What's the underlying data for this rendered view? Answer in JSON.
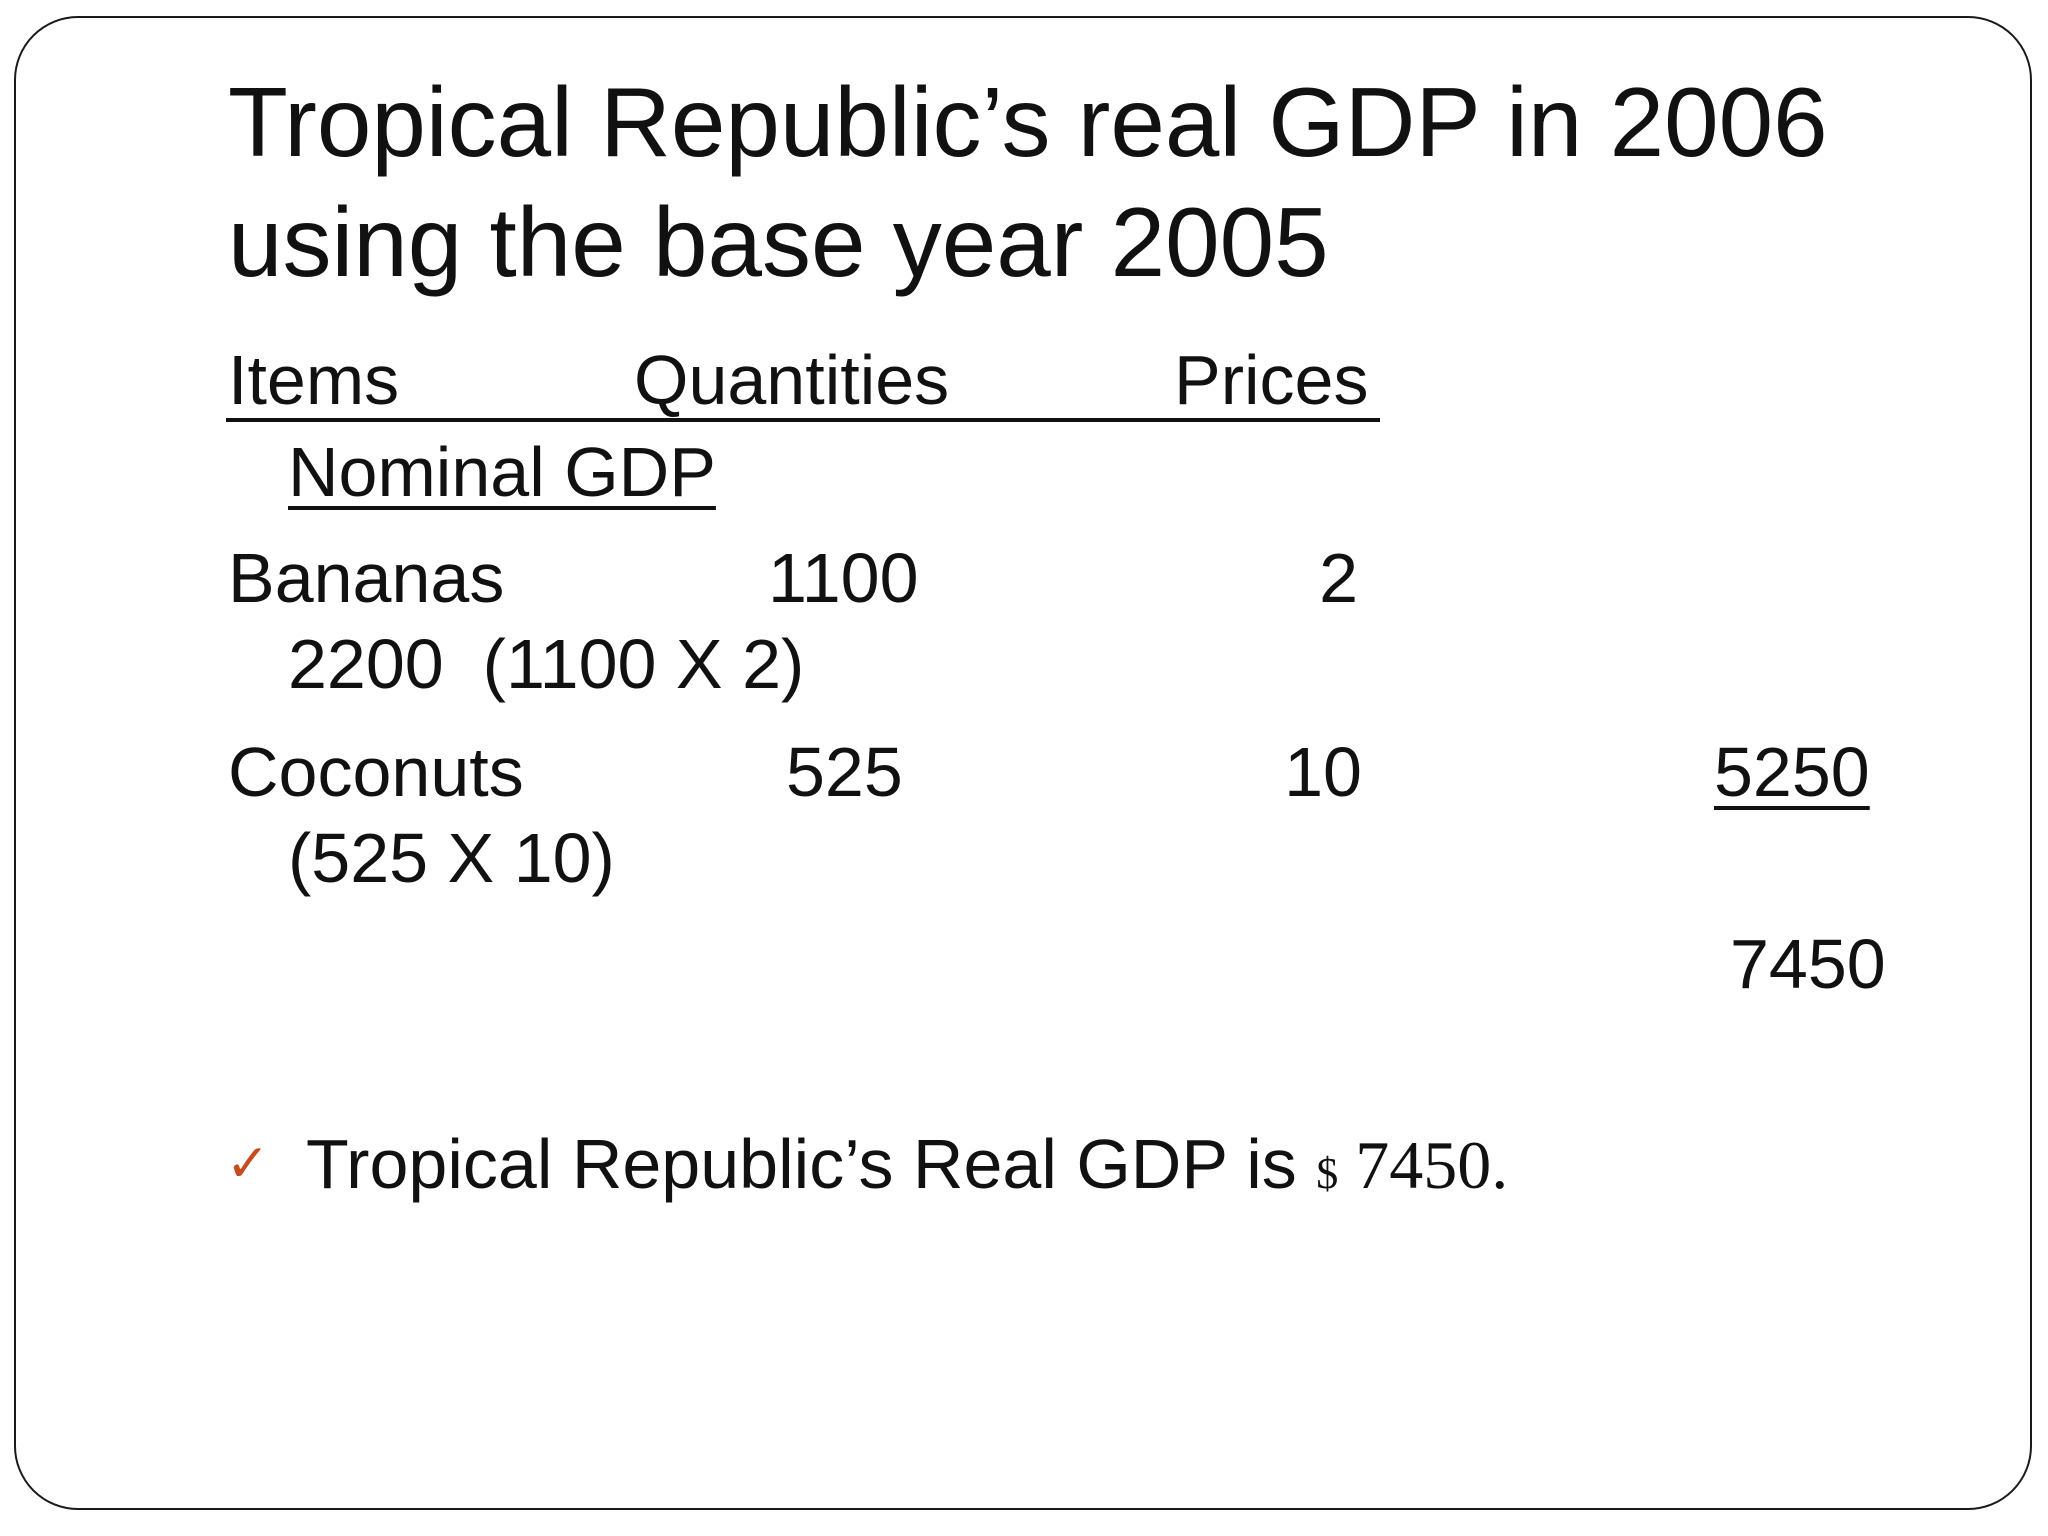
{
  "slide": {
    "title_lines": [
      "Tropical Republic’s real GDP in 2006",
      "using the base year 2005"
    ],
    "table": {
      "headers": {
        "items": "Items",
        "quantities": "Quantities",
        "prices": "Prices",
        "nominal_gdp": "Nominal GDP"
      },
      "rows": [
        {
          "item": "Bananas",
          "quantity": "1100",
          "price": "2",
          "value": "2200",
          "calc": "(1100 X 2)"
        },
        {
          "item": "Coconuts",
          "quantity": "525",
          "price": "10",
          "value": "5250",
          "calc": "(525 X 10)"
        }
      ],
      "total": "7450"
    },
    "conclusion": {
      "bullet_icon": "checkmark-icon",
      "bullet_color": "#c84b1e",
      "text": "Tropical Republic’s Real GDP is",
      "currency": "$",
      "amount": "7450",
      "terminator": "."
    }
  }
}
